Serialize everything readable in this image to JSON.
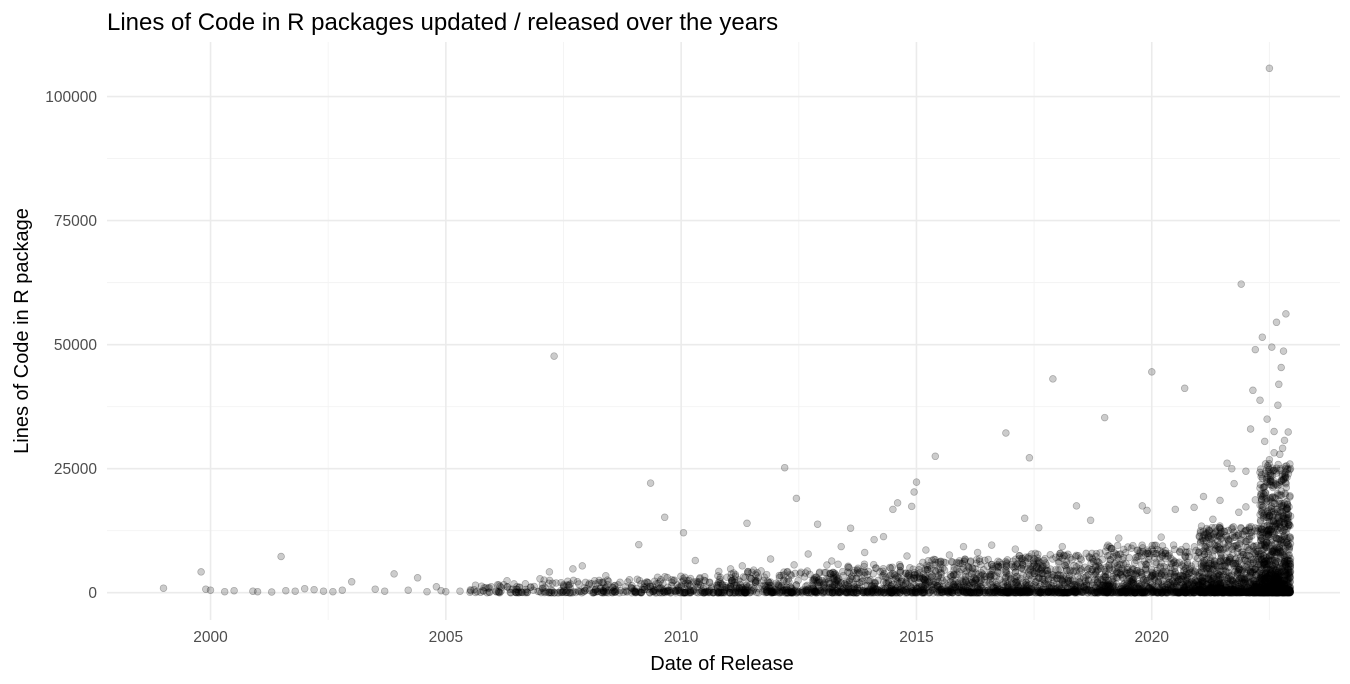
{
  "chart_data": {
    "type": "scatter",
    "title": "Lines of Code in R packages updated / released over the years",
    "xlabel": "Date of Release",
    "ylabel": "Lines of Code in R package",
    "x_ticks": [
      "2000",
      "2005",
      "2010",
      "2015",
      "2020"
    ],
    "y_ticks": [
      "0",
      "25000",
      "50000",
      "75000",
      "100000"
    ],
    "xlim": [
      1997.8,
      2024.0
    ],
    "ylim": [
      -5500,
      111000
    ],
    "grid": true,
    "legend": "none",
    "point_color": "#000000",
    "point_alpha": 0.2,
    "points": [
      [
        1999.0,
        900
      ],
      [
        1999.8,
        4200
      ],
      [
        1999.9,
        700
      ],
      [
        2000.0,
        500
      ],
      [
        2000.3,
        200
      ],
      [
        2000.5,
        400
      ],
      [
        2000.9,
        300
      ],
      [
        2001.0,
        200
      ],
      [
        2001.3,
        150
      ],
      [
        2001.5,
        7300
      ],
      [
        2001.6,
        400
      ],
      [
        2001.8,
        300
      ],
      [
        2002.0,
        800
      ],
      [
        2002.2,
        600
      ],
      [
        2002.4,
        300
      ],
      [
        2002.6,
        200
      ],
      [
        2002.8,
        500
      ],
      [
        2003.0,
        2200
      ],
      [
        2003.5,
        700
      ],
      [
        2003.7,
        300
      ],
      [
        2003.9,
        3800
      ],
      [
        2004.2,
        500
      ],
      [
        2004.4,
        3000
      ],
      [
        2004.6,
        200
      ],
      [
        2004.8,
        1200
      ],
      [
        2004.9,
        400
      ],
      [
        2005.0,
        200
      ],
      [
        2005.3,
        300
      ],
      [
        2005.6,
        600
      ],
      [
        2005.9,
        900
      ],
      [
        2006.1,
        1600
      ],
      [
        2006.3,
        2400
      ],
      [
        2006.5,
        700
      ],
      [
        2006.8,
        1100
      ],
      [
        2007.0,
        2800
      ],
      [
        2007.2,
        4200
      ],
      [
        2007.3,
        47700
      ],
      [
        2007.5,
        1600
      ],
      [
        2007.7,
        4800
      ],
      [
        2007.9,
        5400
      ],
      [
        2008.1,
        1800
      ],
      [
        2008.4,
        3400
      ],
      [
        2008.7,
        2100
      ],
      [
        2008.9,
        2600
      ],
      [
        2009.1,
        9700
      ],
      [
        2009.35,
        22100
      ],
      [
        2009.5,
        3100
      ],
      [
        2009.65,
        15200
      ],
      [
        2009.8,
        2600
      ],
      [
        2010.05,
        12100
      ],
      [
        2010.3,
        6500
      ],
      [
        2010.5,
        3200
      ],
      [
        2010.8,
        4300
      ],
      [
        2011.05,
        4800
      ],
      [
        2011.3,
        5400
      ],
      [
        2011.4,
        14000
      ],
      [
        2011.7,
        4400
      ],
      [
        2011.9,
        6800
      ],
      [
        2012.2,
        25200
      ],
      [
        2012.4,
        5600
      ],
      [
        2012.45,
        19000
      ],
      [
        2012.7,
        7800
      ],
      [
        2012.9,
        13800
      ],
      [
        2013.2,
        6400
      ],
      [
        2013.4,
        9300
      ],
      [
        2013.6,
        13000
      ],
      [
        2013.9,
        8100
      ],
      [
        2014.1,
        10700
      ],
      [
        2014.3,
        11300
      ],
      [
        2014.5,
        16800
      ],
      [
        2014.6,
        18100
      ],
      [
        2014.8,
        7400
      ],
      [
        2014.9,
        17400
      ],
      [
        2014.95,
        20300
      ],
      [
        2015.0,
        22300
      ],
      [
        2015.2,
        8600
      ],
      [
        2015.4,
        27500
      ],
      [
        2015.7,
        7600
      ],
      [
        2016.0,
        9300
      ],
      [
        2016.3,
        8100
      ],
      [
        2016.6,
        9600
      ],
      [
        2016.9,
        32200
      ],
      [
        2017.1,
        8800
      ],
      [
        2017.3,
        15000
      ],
      [
        2017.4,
        27200
      ],
      [
        2017.6,
        13100
      ],
      [
        2017.9,
        43100
      ],
      [
        2018.1,
        9300
      ],
      [
        2018.4,
        17500
      ],
      [
        2018.7,
        14600
      ],
      [
        2018.9,
        8000
      ],
      [
        2019.0,
        35300
      ],
      [
        2019.3,
        11000
      ],
      [
        2019.6,
        9500
      ],
      [
        2019.8,
        17500
      ],
      [
        2019.9,
        16600
      ],
      [
        2020.0,
        44500
      ],
      [
        2020.2,
        11200
      ],
      [
        2020.5,
        16800
      ],
      [
        2020.7,
        41200
      ],
      [
        2020.9,
        17200
      ],
      [
        2021.1,
        19400
      ],
      [
        2021.3,
        14800
      ],
      [
        2021.45,
        18600
      ],
      [
        2021.6,
        26100
      ],
      [
        2021.7,
        25000
      ],
      [
        2021.75,
        22000
      ],
      [
        2021.9,
        62200
      ],
      [
        2022.0,
        24500
      ],
      [
        2022.1,
        33000
      ],
      [
        2022.15,
        40800
      ],
      [
        2022.2,
        49000
      ],
      [
        2022.3,
        38800
      ],
      [
        2022.35,
        51500
      ],
      [
        2022.4,
        30500
      ],
      [
        2022.45,
        35000
      ],
      [
        2022.5,
        105700
      ],
      [
        2022.55,
        49500
      ],
      [
        2022.6,
        32500
      ],
      [
        2022.65,
        54500
      ],
      [
        2022.7,
        42000
      ],
      [
        2022.75,
        45400
      ],
      [
        2022.8,
        48700
      ],
      [
        2022.85,
        56200
      ],
      [
        2022.9,
        32400
      ],
      [
        2022.68,
        37800
      ],
      [
        2022.72,
        27900
      ],
      [
        2022.78,
        29100
      ],
      [
        2022.82,
        30700
      ],
      [
        2022.6,
        28200
      ],
      [
        2022.5,
        26800
      ],
      [
        2022.3,
        21100
      ],
      [
        2022.2,
        18700
      ],
      [
        2022.0,
        17300
      ],
      [
        2021.85,
        16200
      ],
      [
        2022.65,
        24100
      ],
      [
        2022.58,
        22700
      ],
      [
        2022.88,
        24800
      ],
      [
        2022.84,
        19700
      ],
      [
        2022.76,
        17500
      ],
      [
        2022.7,
        15200
      ],
      [
        2022.66,
        13900
      ]
    ],
    "dense_bands": [
      {
        "x_from": 2005.5,
        "x_to": 2007.0,
        "y_max": 1800,
        "count": 60
      },
      {
        "x_from": 2007.0,
        "x_to": 2009.0,
        "y_max": 2600,
        "count": 130
      },
      {
        "x_from": 2009.0,
        "x_to": 2011.0,
        "y_max": 3400,
        "count": 200
      },
      {
        "x_from": 2011.0,
        "x_to": 2013.0,
        "y_max": 4600,
        "count": 280
      },
      {
        "x_from": 2013.0,
        "x_to": 2015.0,
        "y_max": 5800,
        "count": 360
      },
      {
        "x_from": 2015.0,
        "x_to": 2017.0,
        "y_max": 6800,
        "count": 440
      },
      {
        "x_from": 2017.0,
        "x_to": 2019.0,
        "y_max": 8000,
        "count": 520
      },
      {
        "x_from": 2019.0,
        "x_to": 2021.0,
        "y_max": 9600,
        "count": 640
      },
      {
        "x_from": 2021.0,
        "x_to": 2022.3,
        "y_max": 13500,
        "count": 760
      },
      {
        "x_from": 2022.3,
        "x_to": 2022.95,
        "y_max": 26000,
        "count": 900
      }
    ]
  }
}
